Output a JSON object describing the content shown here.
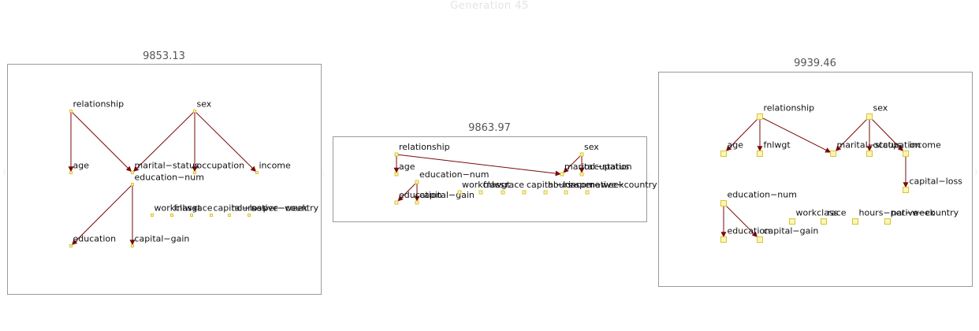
{
  "title": "Generation 45",
  "panels": [
    {
      "score": "9853.13",
      "nodes": [
        {
          "id": "relationship",
          "label": "relationship"
        },
        {
          "id": "sex",
          "label": "sex"
        },
        {
          "id": "age",
          "label": "age"
        },
        {
          "id": "marital-status",
          "label": "marital−status"
        },
        {
          "id": "occupation",
          "label": "occupation"
        },
        {
          "id": "income",
          "label": "income"
        },
        {
          "id": "education-num",
          "label": "education−num"
        },
        {
          "id": "workclass",
          "label": "workclass"
        },
        {
          "id": "fnlwgt",
          "label": "fnlwgt"
        },
        {
          "id": "race",
          "label": "race"
        },
        {
          "id": "capital-loss",
          "label": "capital−loss"
        },
        {
          "id": "hours-per-week",
          "label": "hours−per−week"
        },
        {
          "id": "native-country",
          "label": "native−country"
        },
        {
          "id": "education",
          "label": "education"
        },
        {
          "id": "capital-gain",
          "label": "capital−gain"
        }
      ],
      "edges": [
        [
          "relationship",
          "age"
        ],
        [
          "relationship",
          "marital-status"
        ],
        [
          "sex",
          "marital-status"
        ],
        [
          "sex",
          "occupation"
        ],
        [
          "sex",
          "income"
        ],
        [
          "education-num",
          "education"
        ],
        [
          "education-num",
          "capital-gain"
        ]
      ]
    },
    {
      "score": "9863.97",
      "nodes": [
        {
          "id": "relationship",
          "label": "relationship"
        },
        {
          "id": "sex",
          "label": "sex"
        },
        {
          "id": "age",
          "label": "age"
        },
        {
          "id": "marital-status",
          "label": "marital−status"
        },
        {
          "id": "occupation",
          "label": "occupation"
        },
        {
          "id": "education-num",
          "label": "education−num"
        },
        {
          "id": "education",
          "label": "education"
        },
        {
          "id": "capital-gain",
          "label": "capital−gain"
        },
        {
          "id": "workclass",
          "label": "workclass"
        },
        {
          "id": "fnlwgt",
          "label": "fnlwgt"
        },
        {
          "id": "race",
          "label": "race"
        },
        {
          "id": "capital-loss",
          "label": "capital−loss"
        },
        {
          "id": "hours-per-week",
          "label": "hours−per−week"
        },
        {
          "id": "income",
          "label": "income"
        },
        {
          "id": "native-country",
          "label": "native−country"
        }
      ],
      "edges": [
        [
          "relationship",
          "age"
        ],
        [
          "relationship",
          "marital-status"
        ],
        [
          "sex",
          "marital-status"
        ],
        [
          "sex",
          "occupation"
        ],
        [
          "education-num",
          "education"
        ],
        [
          "education-num",
          "capital-gain"
        ]
      ]
    },
    {
      "score": "9939.46",
      "nodes": [
        {
          "id": "relationship",
          "label": "relationship"
        },
        {
          "id": "sex",
          "label": "sex"
        },
        {
          "id": "age",
          "label": "age"
        },
        {
          "id": "fnlwgt",
          "label": "fnlwgt"
        },
        {
          "id": "marital-status",
          "label": "marital−status"
        },
        {
          "id": "occupation",
          "label": "occupation"
        },
        {
          "id": "income",
          "label": "income"
        },
        {
          "id": "capital-loss",
          "label": "capital−loss"
        },
        {
          "id": "education-num",
          "label": "education−num"
        },
        {
          "id": "education",
          "label": "education"
        },
        {
          "id": "capital-gain",
          "label": "capital−gain"
        },
        {
          "id": "workclass",
          "label": "workclass"
        },
        {
          "id": "race",
          "label": "race"
        },
        {
          "id": "hours-per-week",
          "label": "hours−per−week"
        },
        {
          "id": "native-country",
          "label": "native−country"
        }
      ],
      "edges": [
        [
          "relationship",
          "age"
        ],
        [
          "relationship",
          "fnlwgt"
        ],
        [
          "relationship",
          "marital-status"
        ],
        [
          "sex",
          "marital-status"
        ],
        [
          "sex",
          "occupation"
        ],
        [
          "sex",
          "income"
        ],
        [
          "income",
          "capital-loss"
        ],
        [
          "education-num",
          "education"
        ],
        [
          "education-num",
          "capital-gain"
        ]
      ]
    }
  ],
  "colors": {
    "edge": "#7a0a0a",
    "node_fill": "#fbf5b8",
    "node_stroke": "#d8c436",
    "frame": "#9a9a9a"
  }
}
